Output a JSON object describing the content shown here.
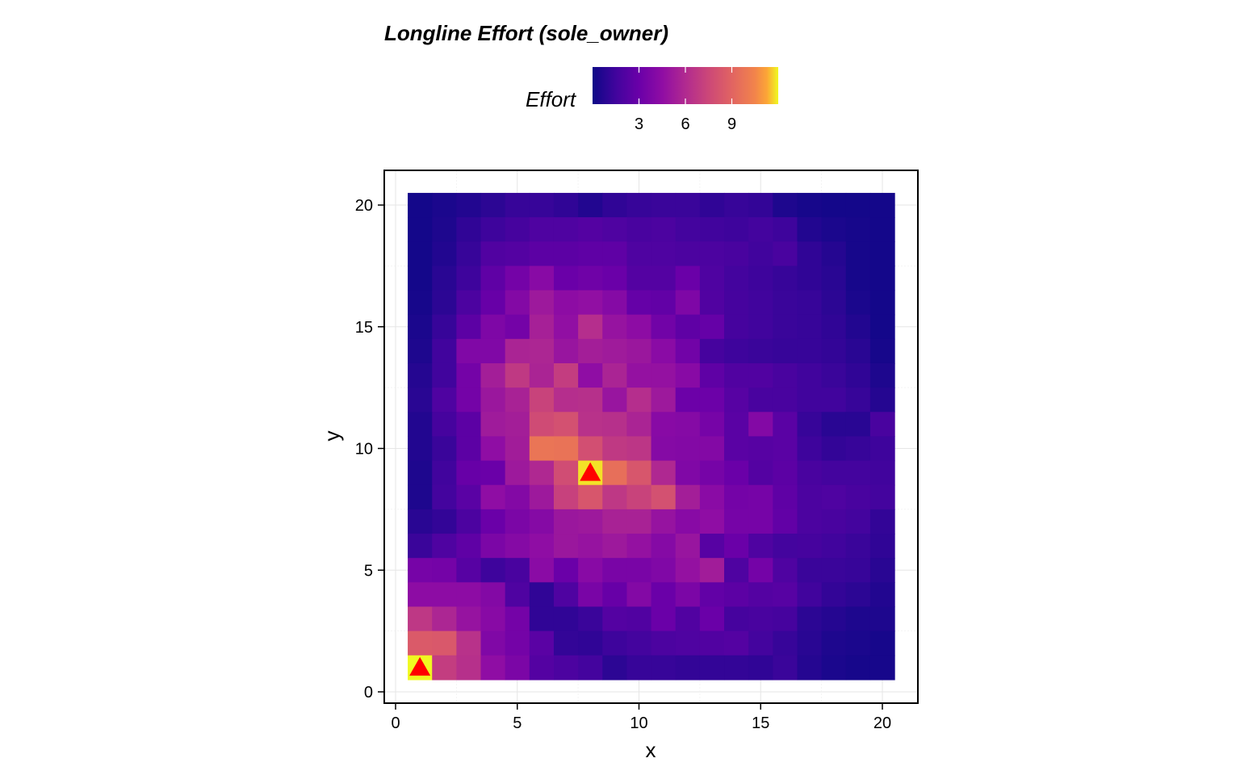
{
  "chart_data": {
    "type": "heatmap",
    "title": "Longline Effort (sole_owner)",
    "xlabel": "x",
    "ylabel": "y",
    "xlim": [
      0,
      21
    ],
    "ylim": [
      0,
      21
    ],
    "x_ticks": [
      "0",
      "5",
      "10",
      "15",
      "20"
    ],
    "y_ticks": [
      "0",
      "5",
      "10",
      "15",
      "20"
    ],
    "grid": true,
    "colorbar": {
      "label": "Effort",
      "palette": "plasma",
      "range": [
        0,
        12
      ],
      "ticks": [
        "3",
        "6",
        "9"
      ]
    },
    "x": [
      1,
      2,
      3,
      4,
      5,
      6,
      7,
      8,
      9,
      10,
      11,
      12,
      13,
      14,
      15,
      16,
      17,
      18,
      19,
      20
    ],
    "y": [
      20,
      19,
      18,
      17,
      16,
      15,
      14,
      13,
      12,
      11,
      10,
      9,
      8,
      7,
      6,
      5,
      4,
      3,
      2,
      1
    ],
    "z": [
      [
        0.2,
        0.4,
        0.6,
        0.9,
        1.2,
        1.2,
        1.0,
        0.6,
        1.0,
        1.2,
        1.3,
        1.3,
        1.0,
        1.2,
        1.1,
        0.5,
        0.3,
        0.2,
        0.2,
        0.2
      ],
      [
        0.2,
        0.5,
        1.0,
        1.4,
        1.7,
        2.0,
        2.0,
        2.2,
        2.0,
        1.8,
        1.9,
        1.6,
        1.5,
        1.4,
        1.6,
        1.4,
        0.6,
        0.4,
        0.3,
        0.2
      ],
      [
        0.2,
        0.6,
        1.2,
        2.1,
        2.2,
        2.5,
        2.5,
        2.6,
        2.6,
        2.0,
        2.0,
        1.9,
        1.9,
        1.8,
        1.5,
        1.8,
        1.0,
        0.7,
        0.3,
        0.2
      ],
      [
        0.2,
        0.8,
        1.4,
        2.6,
        3.4,
        4.2,
        3.0,
        3.2,
        3.0,
        2.2,
        2.2,
        3.0,
        2.0,
        1.6,
        1.4,
        1.2,
        1.0,
        0.8,
        0.3,
        0.2
      ],
      [
        0.3,
        0.9,
        1.9,
        2.9,
        4.0,
        5.1,
        4.4,
        4.6,
        4.1,
        2.8,
        2.7,
        3.8,
        2.1,
        1.7,
        1.5,
        1.3,
        1.2,
        0.9,
        0.4,
        0.2
      ],
      [
        0.4,
        1.2,
        2.5,
        3.8,
        3.4,
        5.5,
        4.6,
        6.2,
        4.8,
        4.4,
        3.3,
        2.6,
        2.8,
        1.7,
        1.5,
        1.3,
        1.2,
        1.0,
        0.6,
        0.2
      ],
      [
        0.5,
        1.5,
        3.9,
        3.9,
        5.7,
        5.8,
        4.9,
        5.4,
        5.2,
        5.0,
        4.3,
        3.3,
        1.7,
        1.4,
        1.3,
        1.2,
        1.2,
        1.1,
        0.8,
        0.3
      ],
      [
        0.7,
        1.5,
        3.4,
        5.4,
        6.8,
        5.7,
        7.0,
        4.5,
        5.7,
        4.7,
        4.7,
        4.2,
        2.6,
        2.1,
        2.1,
        1.8,
        1.5,
        1.3,
        1.0,
        0.5
      ],
      [
        0.8,
        2.0,
        3.4,
        5.0,
        5.6,
        7.3,
        6.2,
        6.3,
        4.9,
        6.2,
        5.1,
        3.1,
        3.1,
        2.3,
        1.8,
        1.8,
        1.5,
        1.5,
        1.2,
        0.7
      ],
      [
        0.6,
        1.7,
        2.5,
        5.2,
        5.4,
        7.7,
        8.0,
        6.4,
        6.3,
        5.7,
        4.2,
        4.1,
        3.5,
        2.4,
        4.0,
        2.4,
        1.2,
        0.8,
        0.8,
        1.8
      ],
      [
        0.6,
        1.3,
        2.5,
        4.5,
        5.3,
        9.8,
        9.7,
        7.9,
        6.8,
        6.6,
        4.1,
        4.0,
        4.0,
        2.4,
        2.3,
        2.4,
        1.4,
        1.1,
        1.2,
        1.4
      ],
      [
        0.5,
        1.5,
        2.9,
        3.0,
        5.1,
        5.9,
        7.8,
        11.8,
        9.5,
        8.3,
        5.9,
        3.9,
        3.5,
        3.0,
        2.2,
        2.5,
        1.8,
        1.6,
        1.6,
        1.5
      ],
      [
        0.5,
        1.6,
        2.4,
        4.5,
        4.0,
        5.1,
        7.2,
        8.3,
        6.7,
        7.3,
        8.0,
        5.4,
        4.3,
        3.4,
        3.5,
        2.6,
        1.9,
        2.0,
        1.8,
        1.6
      ],
      [
        0.8,
        1.1,
        1.9,
        3.0,
        3.7,
        4.1,
        5.0,
        5.1,
        5.6,
        5.6,
        4.8,
        4.2,
        4.5,
        3.5,
        3.5,
        2.7,
        1.9,
        1.8,
        1.6,
        1.1
      ],
      [
        1.3,
        2.0,
        2.6,
        3.7,
        4.1,
        4.5,
        5.0,
        4.8,
        5.1,
        4.7,
        4.1,
        4.9,
        2.3,
        3.0,
        2.0,
        1.6,
        1.7,
        1.5,
        1.3,
        1.0
      ],
      [
        3.5,
        3.4,
        2.3,
        1.4,
        1.8,
        4.3,
        3.0,
        4.2,
        3.6,
        3.6,
        3.9,
        4.7,
        5.3,
        2.0,
        3.4,
        2.0,
        1.3,
        1.3,
        1.2,
        0.8
      ],
      [
        4.4,
        4.4,
        4.4,
        4.0,
        2.0,
        1.0,
        2.0,
        3.6,
        2.9,
        4.0,
        3.0,
        3.7,
        2.7,
        2.5,
        2.2,
        2.3,
        1.5,
        1.1,
        0.9,
        0.6
      ],
      [
        6.7,
        5.8,
        4.8,
        4.2,
        3.4,
        1.0,
        1.0,
        1.3,
        2.2,
        2.1,
        3.0,
        2.1,
        3.0,
        1.7,
        1.8,
        1.7,
        0.9,
        0.7,
        0.5,
        0.5
      ],
      [
        8.5,
        8.4,
        6.4,
        3.9,
        3.4,
        2.4,
        1.1,
        1.0,
        1.4,
        1.6,
        1.9,
        2.0,
        2.1,
        2.2,
        1.6,
        1.2,
        0.8,
        0.5,
        0.4,
        0.3
      ],
      [
        12.0,
        7.0,
        6.3,
        4.5,
        3.7,
        2.2,
        1.9,
        1.6,
        0.9,
        1.2,
        1.2,
        1.1,
        1.1,
        1.1,
        1.0,
        1.3,
        0.7,
        0.4,
        0.3,
        0.3
      ]
    ],
    "markers": [
      {
        "x": 1,
        "y": 1,
        "shape": "triangle",
        "color": "#ff0000"
      },
      {
        "x": 8,
        "y": 9,
        "shape": "triangle",
        "color": "#ff0000"
      }
    ]
  }
}
